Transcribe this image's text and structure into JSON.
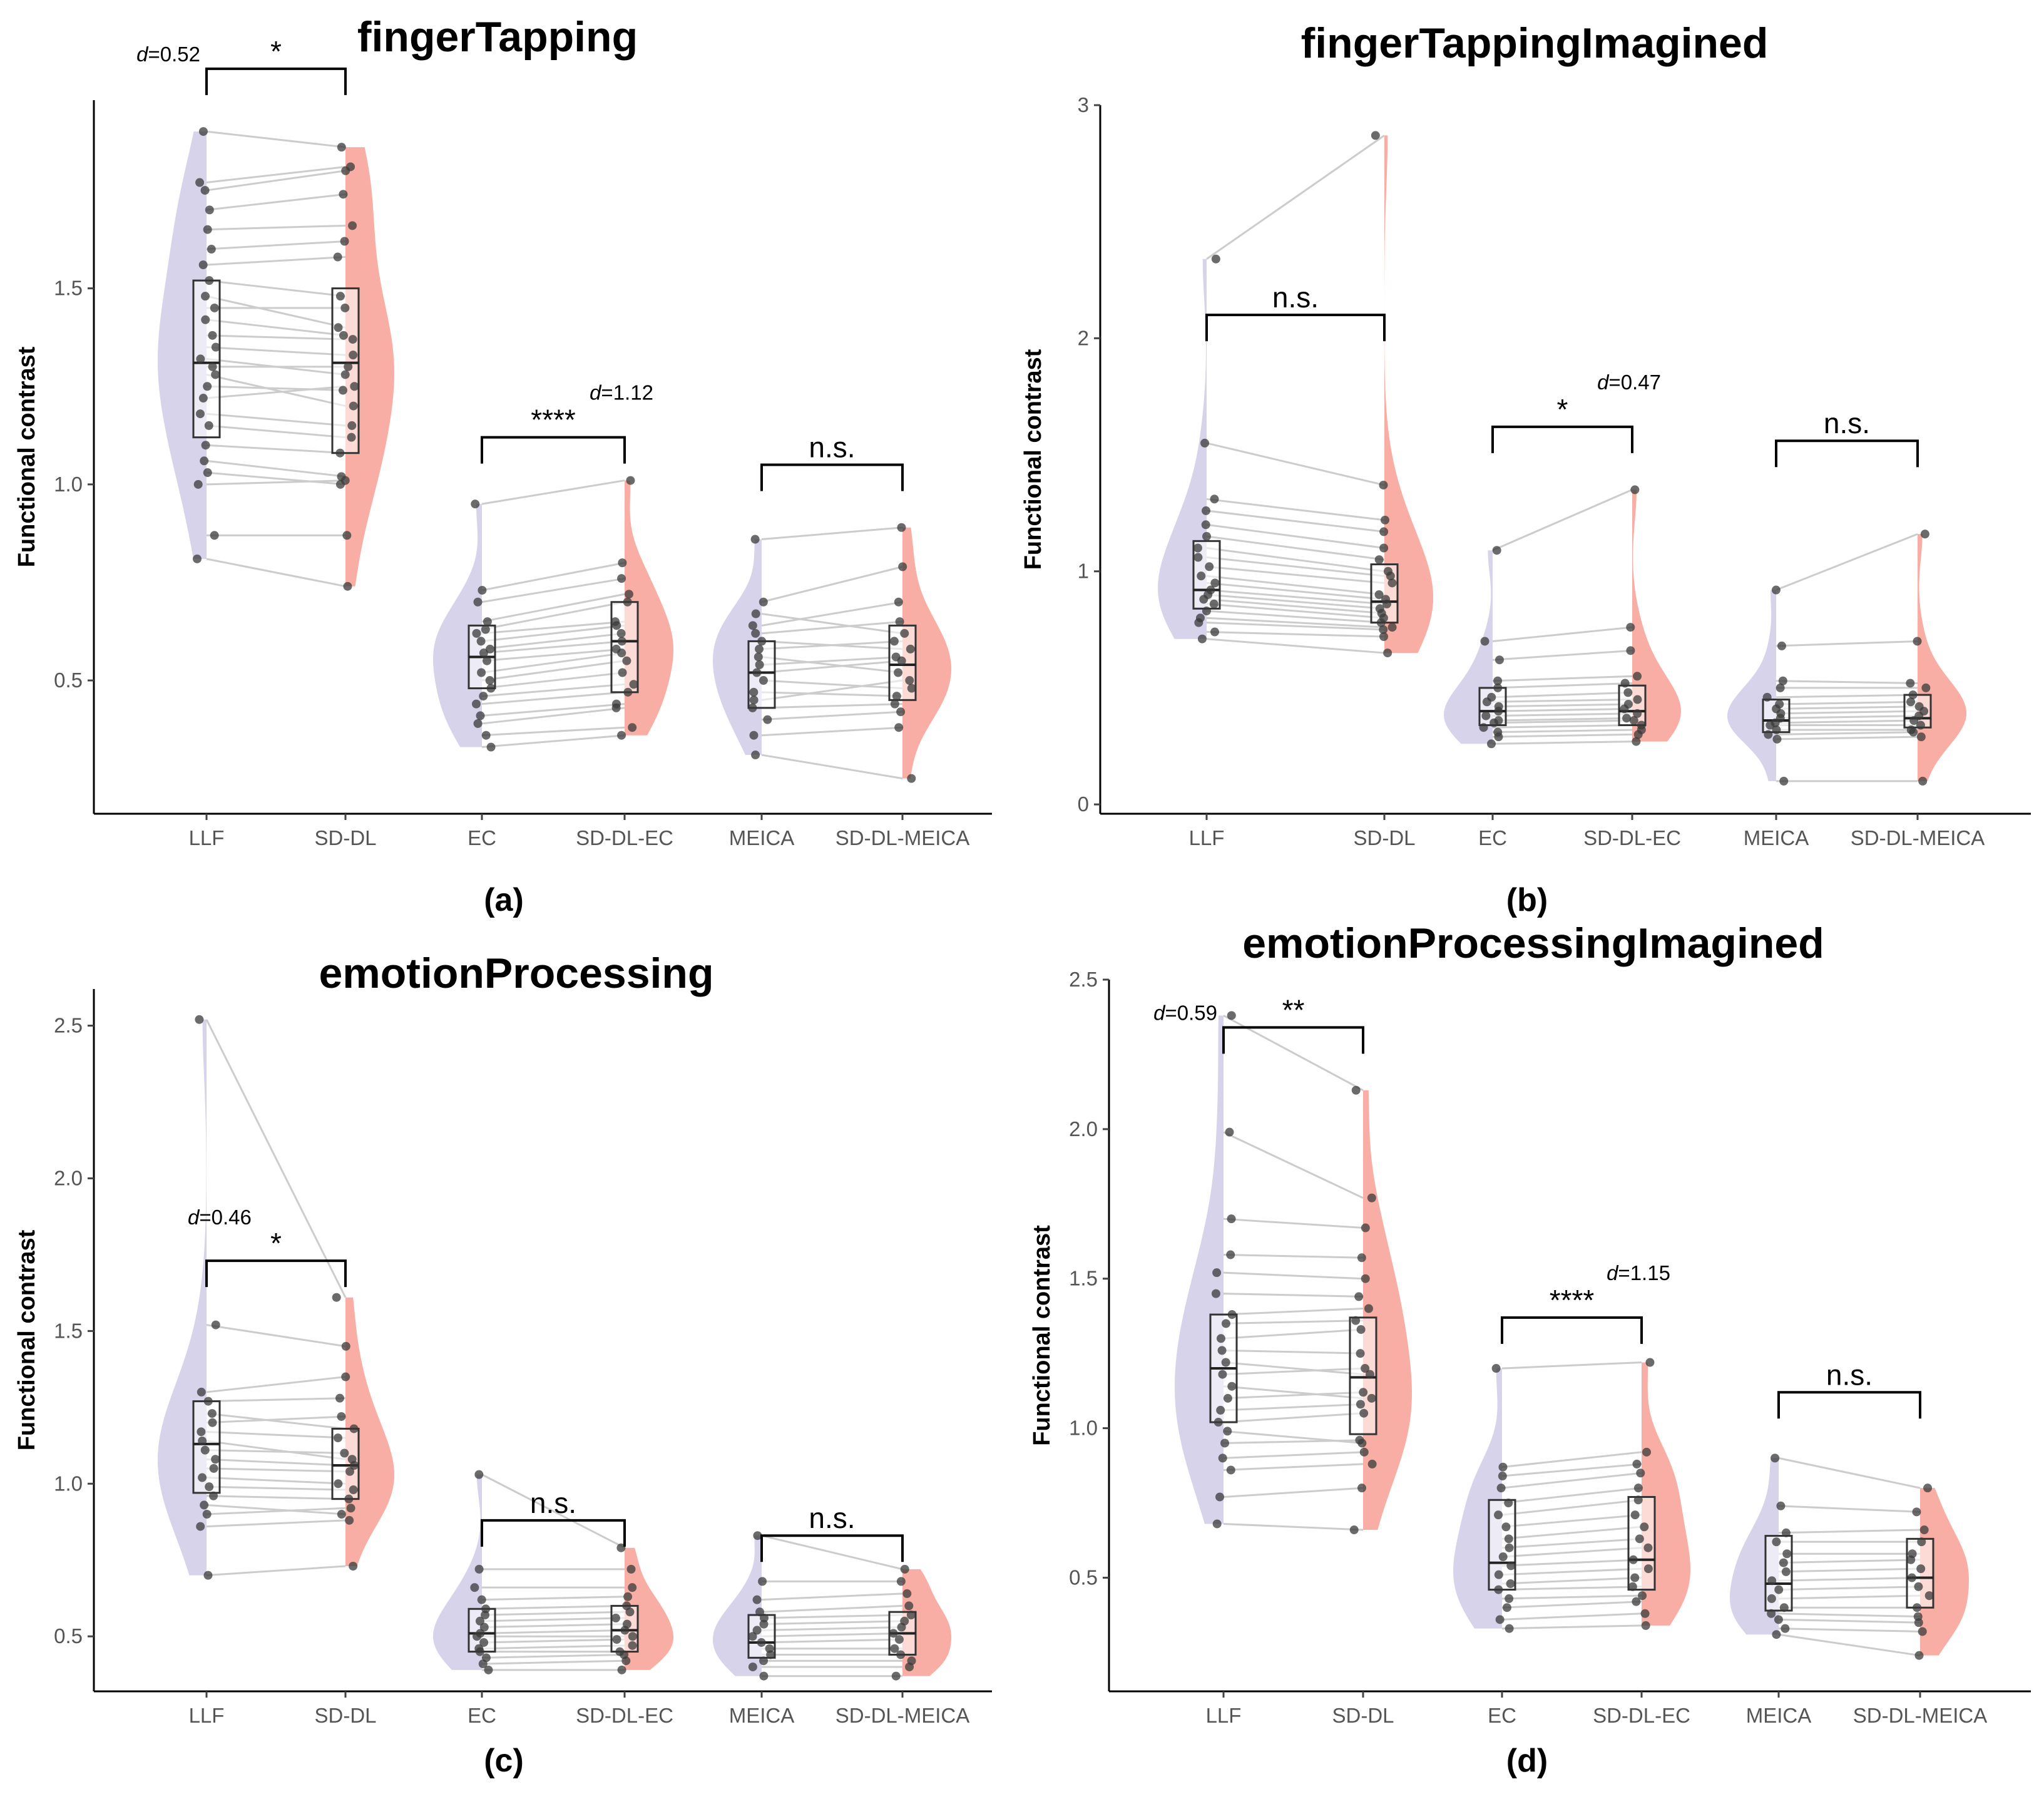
{
  "figure": {
    "colors": {
      "violin_left": "#cfcbe6",
      "violin_right": "#f7a094",
      "point": "#3a3a3a",
      "line": "#cccccc"
    },
    "categories": [
      "LLF",
      "SD-DL",
      "EC",
      "SD-DL-EC",
      "MEICA",
      "SD-DL-MEICA"
    ]
  },
  "chart_data": [
    {
      "type": "violin",
      "title": "fingerTapping",
      "caption": "(a)",
      "ylabel": "Functional contrast",
      "xlabel": "",
      "categories": [
        "LLF",
        "SD-DL",
        "EC",
        "SD-DL-EC",
        "MEICA",
        "SD-DL-MEICA"
      ],
      "ylim": [
        0.16,
        1.98
      ],
      "yticks": [
        0.5,
        1.0,
        1.5
      ],
      "ytick_labels": [
        "0.5",
        "1.0",
        "1.5"
      ],
      "box_stats": [
        {
          "q1": 1.12,
          "median": 1.31,
          "q3": 1.52
        },
        {
          "q1": 1.08,
          "median": 1.31,
          "q3": 1.5
        },
        {
          "q1": 0.48,
          "median": 0.56,
          "q3": 0.64
        },
        {
          "q1": 0.47,
          "median": 0.6,
          "q3": 0.7
        },
        {
          "q1": 0.43,
          "median": 0.52,
          "q3": 0.6
        },
        {
          "q1": 0.45,
          "median": 0.54,
          "q3": 0.64
        }
      ],
      "comparisons": [
        {
          "pair": [
            "LLF",
            "SD-DL"
          ],
          "y": 2.06,
          "label": "*",
          "effect_size": "0.52",
          "effect_pos": "left"
        },
        {
          "pair": [
            "EC",
            "SD-DL-EC"
          ],
          "y": 1.12,
          "label": "****",
          "effect_size": "1.12",
          "effect_pos": "above-right"
        },
        {
          "pair": [
            "MEICA",
            "SD-DL-MEICA"
          ],
          "y": 1.05,
          "label": "n.s.",
          "effect_size": "",
          "effect_pos": ""
        }
      ],
      "paired_values": [
        {
          "left": [
            0.81,
            0.87,
            1.0,
            1.03,
            1.06,
            1.1,
            1.15,
            1.18,
            1.22,
            1.25,
            1.28,
            1.3,
            1.32,
            1.35,
            1.38,
            1.42,
            1.45,
            1.48,
            1.52,
            1.56,
            1.6,
            1.65,
            1.7,
            1.75,
            1.77,
            1.9
          ],
          "right": [
            0.74,
            0.87,
            1.01,
            1.0,
            1.02,
            1.08,
            1.12,
            1.15,
            1.25,
            1.24,
            1.2,
            1.3,
            1.28,
            1.33,
            1.37,
            1.38,
            1.45,
            1.4,
            1.48,
            1.58,
            1.62,
            1.66,
            1.74,
            1.8,
            1.81,
            1.86
          ]
        },
        {
          "left": [
            0.33,
            0.36,
            0.39,
            0.41,
            0.44,
            0.46,
            0.48,
            0.5,
            0.52,
            0.55,
            0.57,
            0.58,
            0.6,
            0.62,
            0.63,
            0.65,
            0.7,
            0.73,
            0.95
          ],
          "right": [
            0.36,
            0.38,
            0.43,
            0.44,
            0.47,
            0.49,
            0.52,
            0.55,
            0.57,
            0.58,
            0.6,
            0.62,
            0.64,
            0.65,
            0.7,
            0.72,
            0.76,
            0.8,
            1.01
          ]
        },
        {
          "left": [
            0.31,
            0.36,
            0.4,
            0.43,
            0.45,
            0.47,
            0.5,
            0.52,
            0.54,
            0.56,
            0.58,
            0.6,
            0.62,
            0.64,
            0.67,
            0.7,
            0.86
          ],
          "right": [
            0.25,
            0.38,
            0.42,
            0.44,
            0.5,
            0.46,
            0.48,
            0.55,
            0.56,
            0.52,
            0.6,
            0.58,
            0.65,
            0.7,
            0.62,
            0.79,
            0.89
          ]
        }
      ]
    },
    {
      "type": "violin",
      "title": "fingerTappingImagined",
      "caption": "(b)",
      "ylabel": "Functional contrast",
      "xlabel": "",
      "categories": [
        "LLF",
        "SD-DL",
        "EC",
        "SD-DL-EC",
        "MEICA",
        "SD-DL-MEICA"
      ],
      "ylim": [
        -0.04,
        3.0
      ],
      "yticks": [
        0,
        1,
        2,
        3
      ],
      "ytick_labels": [
        "0",
        "1",
        "2",
        "3"
      ],
      "box_stats": [
        {
          "q1": 0.84,
          "median": 0.92,
          "q3": 1.13
        },
        {
          "q1": 0.78,
          "median": 0.87,
          "q3": 1.03
        },
        {
          "q1": 0.34,
          "median": 0.4,
          "q3": 0.5
        },
        {
          "q1": 0.34,
          "median": 0.4,
          "q3": 0.51
        },
        {
          "q1": 0.31,
          "median": 0.36,
          "q3": 0.45
        },
        {
          "q1": 0.33,
          "median": 0.37,
          "q3": 0.47
        }
      ],
      "comparisons": [
        {
          "pair": [
            "LLF",
            "SD-DL"
          ],
          "y": 2.1,
          "label": "n.s.",
          "effect_size": "",
          "effect_pos": ""
        },
        {
          "pair": [
            "EC",
            "SD-DL-EC"
          ],
          "y": 1.62,
          "label": "*",
          "effect_size": "0.47",
          "effect_pos": "above-right"
        },
        {
          "pair": [
            "MEICA",
            "SD-DL-MEICA"
          ],
          "y": 1.56,
          "label": "n.s.",
          "effect_size": "",
          "effect_pos": ""
        }
      ],
      "paired_values": [
        {
          "left": [
            0.71,
            0.74,
            0.78,
            0.8,
            0.83,
            0.86,
            0.88,
            0.9,
            0.92,
            0.95,
            0.98,
            1.02,
            1.06,
            1.1,
            1.15,
            1.2,
            1.26,
            1.31,
            1.55,
            2.34
          ],
          "right": [
            0.65,
            0.72,
            0.75,
            0.76,
            0.78,
            0.8,
            0.82,
            0.84,
            0.86,
            0.88,
            0.9,
            0.95,
            0.98,
            1.0,
            1.05,
            1.1,
            1.17,
            1.22,
            1.37,
            2.87
          ]
        },
        {
          "left": [
            0.26,
            0.29,
            0.31,
            0.33,
            0.35,
            0.36,
            0.38,
            0.4,
            0.42,
            0.44,
            0.46,
            0.5,
            0.53,
            0.62,
            0.7,
            1.09
          ],
          "right": [
            0.27,
            0.3,
            0.32,
            0.34,
            0.36,
            0.37,
            0.39,
            0.41,
            0.43,
            0.45,
            0.48,
            0.52,
            0.55,
            0.66,
            0.76,
            1.35
          ]
        },
        {
          "left": [
            0.1,
            0.28,
            0.3,
            0.32,
            0.34,
            0.35,
            0.37,
            0.39,
            0.41,
            0.43,
            0.46,
            0.5,
            0.53,
            0.68,
            0.92
          ],
          "right": [
            0.1,
            0.29,
            0.31,
            0.32,
            0.34,
            0.36,
            0.38,
            0.4,
            0.42,
            0.44,
            0.47,
            0.5,
            0.52,
            0.7,
            1.16
          ]
        }
      ]
    },
    {
      "type": "violin",
      "title": "emotionProcessing",
      "caption": "(c)",
      "ylabel": "Functional contrast",
      "xlabel": "",
      "categories": [
        "LLF",
        "SD-DL",
        "EC",
        "SD-DL-EC",
        "MEICA",
        "SD-DL-MEICA"
      ],
      "ylim": [
        0.32,
        2.62
      ],
      "yticks": [
        0.5,
        1.0,
        1.5,
        2.0,
        2.5
      ],
      "ytick_labels": [
        "0.5",
        "1.0",
        "1.5",
        "2.0",
        "2.5"
      ],
      "box_stats": [
        {
          "q1": 0.97,
          "median": 1.13,
          "q3": 1.27
        },
        {
          "q1": 0.95,
          "median": 1.06,
          "q3": 1.18
        },
        {
          "q1": 0.45,
          "median": 0.51,
          "q3": 0.59
        },
        {
          "q1": 0.45,
          "median": 0.52,
          "q3": 0.6
        },
        {
          "q1": 0.43,
          "median": 0.48,
          "q3": 0.57
        },
        {
          "q1": 0.44,
          "median": 0.51,
          "q3": 0.58
        }
      ],
      "comparisons": [
        {
          "pair": [
            "LLF",
            "SD-DL"
          ],
          "y": 1.73,
          "label": "*",
          "effect_size": "0.46",
          "effect_pos": "above-left"
        },
        {
          "pair": [
            "EC",
            "SD-DL-EC"
          ],
          "y": 0.88,
          "label": "n.s.",
          "effect_size": "",
          "effect_pos": ""
        },
        {
          "pair": [
            "MEICA",
            "SD-DL-MEICA"
          ],
          "y": 0.83,
          "label": "n.s.",
          "effect_size": "",
          "effect_pos": ""
        }
      ],
      "paired_values": [
        {
          "left": [
            0.7,
            0.86,
            0.9,
            0.93,
            0.96,
            0.99,
            1.02,
            1.05,
            1.08,
            1.11,
            1.14,
            1.17,
            1.2,
            1.23,
            1.27,
            1.3,
            1.52,
            2.52
          ],
          "right": [
            0.73,
            0.88,
            0.92,
            0.9,
            0.95,
            0.98,
            1.0,
            1.04,
            1.06,
            1.1,
            1.08,
            1.15,
            1.22,
            1.18,
            1.28,
            1.35,
            1.45,
            1.61
          ]
        },
        {
          "left": [
            0.39,
            0.41,
            0.43,
            0.45,
            0.46,
            0.48,
            0.5,
            0.51,
            0.53,
            0.55,
            0.57,
            0.59,
            0.62,
            0.66,
            0.72,
            1.03
          ],
          "right": [
            0.39,
            0.42,
            0.44,
            0.45,
            0.47,
            0.49,
            0.5,
            0.52,
            0.54,
            0.56,
            0.58,
            0.6,
            0.63,
            0.66,
            0.72,
            0.79
          ]
        },
        {
          "left": [
            0.37,
            0.4,
            0.42,
            0.44,
            0.46,
            0.48,
            0.5,
            0.52,
            0.54,
            0.56,
            0.58,
            0.62,
            0.68,
            0.83
          ],
          "right": [
            0.37,
            0.4,
            0.42,
            0.44,
            0.46,
            0.49,
            0.51,
            0.53,
            0.55,
            0.57,
            0.6,
            0.64,
            0.68,
            0.72
          ]
        }
      ]
    },
    {
      "type": "violin",
      "title": "emotionProcessingImagined",
      "caption": "(d)",
      "ylabel": "Functional contrast",
      "xlabel": "",
      "categories": [
        "LLF",
        "SD-DL",
        "EC",
        "SD-DL-EC",
        "MEICA",
        "SD-DL-MEICA"
      ],
      "ylim": [
        0.12,
        2.5
      ],
      "yticks": [
        0.5,
        1.0,
        1.5,
        2.0,
        2.5
      ],
      "ytick_labels": [
        "0.5",
        "1.0",
        "1.5",
        "2.0",
        "2.5"
      ],
      "box_stats": [
        {
          "q1": 1.02,
          "median": 1.2,
          "q3": 1.38
        },
        {
          "q1": 0.98,
          "median": 1.17,
          "q3": 1.37
        },
        {
          "q1": 0.46,
          "median": 0.55,
          "q3": 0.76
        },
        {
          "q1": 0.46,
          "median": 0.56,
          "q3": 0.77
        },
        {
          "q1": 0.39,
          "median": 0.48,
          "q3": 0.64
        },
        {
          "q1": 0.4,
          "median": 0.5,
          "q3": 0.63
        }
      ],
      "comparisons": [
        {
          "pair": [
            "LLF",
            "SD-DL"
          ],
          "y": 2.34,
          "label": "**",
          "effect_size": "0.59",
          "effect_pos": "left"
        },
        {
          "pair": [
            "EC",
            "SD-DL-EC"
          ],
          "y": 1.37,
          "label": "****",
          "effect_size": "1.15",
          "effect_pos": "above-right"
        },
        {
          "pair": [
            "MEICA",
            "SD-DL-MEICA"
          ],
          "y": 1.12,
          "label": "n.s.",
          "effect_size": "",
          "effect_pos": ""
        }
      ],
      "paired_values": [
        {
          "left": [
            0.68,
            0.77,
            0.86,
            0.9,
            0.95,
            0.99,
            1.02,
            1.06,
            1.1,
            1.14,
            1.18,
            1.22,
            1.26,
            1.3,
            1.35,
            1.38,
            1.45,
            1.52,
            1.58,
            1.7,
            1.99,
            2.38
          ],
          "right": [
            0.66,
            0.8,
            0.88,
            0.92,
            0.96,
            0.95,
            1.05,
            1.08,
            1.12,
            1.1,
            1.2,
            1.18,
            1.25,
            1.33,
            1.36,
            1.4,
            1.44,
            1.5,
            1.57,
            1.67,
            1.77,
            2.13
          ]
        },
        {
          "left": [
            0.33,
            0.36,
            0.4,
            0.43,
            0.46,
            0.48,
            0.51,
            0.54,
            0.57,
            0.6,
            0.63,
            0.67,
            0.71,
            0.75,
            0.8,
            0.84,
            0.87,
            1.2
          ],
          "right": [
            0.34,
            0.38,
            0.42,
            0.44,
            0.47,
            0.5,
            0.53,
            0.56,
            0.6,
            0.63,
            0.67,
            0.71,
            0.76,
            0.8,
            0.85,
            0.88,
            0.92,
            1.22
          ]
        },
        {
          "left": [
            0.31,
            0.33,
            0.36,
            0.38,
            0.4,
            0.43,
            0.46,
            0.49,
            0.52,
            0.55,
            0.58,
            0.62,
            0.65,
            0.74,
            0.9
          ],
          "right": [
            0.24,
            0.32,
            0.35,
            0.37,
            0.4,
            0.44,
            0.47,
            0.5,
            0.53,
            0.56,
            0.58,
            0.62,
            0.66,
            0.72,
            0.8
          ]
        }
      ]
    }
  ]
}
